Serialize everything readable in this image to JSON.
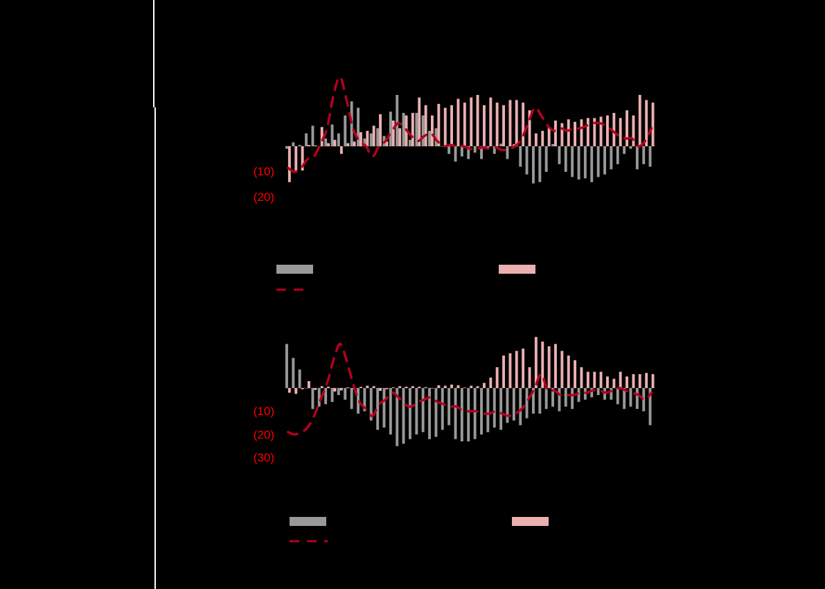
{
  "colors": {
    "background": "#000000",
    "grey_bar": "#999999",
    "pink_bar": "#ebb0b0",
    "line": "#b5001f",
    "axis_label": "#ff0000",
    "divider": "#ffffff"
  },
  "chart_data": [
    {
      "type": "bar",
      "title": "",
      "xlabel": "",
      "ylabel": "",
      "y_tick_labels": [
        "(10)",
        "(20)"
      ],
      "ylim": [
        -20,
        30
      ],
      "grid": false,
      "legend": [
        {
          "name": "",
          "style": "grey-bar"
        },
        {
          "name": "",
          "style": "pink-bar"
        },
        {
          "name": "",
          "style": "dashed-line"
        }
      ],
      "series": [
        {
          "name": "grey",
          "values": [
            -1,
            1.5,
            0.5,
            5,
            8,
            0,
            3,
            8.5,
            5,
            12,
            17.5,
            15,
            3,
            5,
            7,
            4,
            13.5,
            20,
            13,
            2.5,
            13,
            12,
            6,
            7,
            0,
            -3,
            -6,
            -4,
            -5,
            -2.5,
            -5,
            -1,
            -3,
            1,
            -5,
            0.8,
            -8,
            -11,
            -14.5,
            -14,
            -10,
            0.8,
            -7,
            -10,
            -12,
            -13,
            -12.5,
            -14,
            -12,
            -11,
            -9,
            -7,
            -3,
            -1,
            -9,
            -7,
            -8
          ]
        },
        {
          "name": "pink",
          "values": [
            -14,
            -9.5,
            -9.5,
            0.5,
            0.3,
            7.5,
            1.2,
            2.5,
            -3,
            1.2,
            1.8,
            5.5,
            6,
            8,
            12.5,
            1.8,
            10,
            7,
            12,
            13,
            19,
            16,
            12,
            16.5,
            15,
            16,
            18.5,
            17,
            19,
            20,
            16,
            19,
            17,
            16,
            18,
            18,
            17,
            14,
            5,
            6,
            7.5,
            10,
            9,
            10.5,
            9.5,
            10.5,
            11,
            11,
            11.5,
            12,
            13,
            11,
            14,
            12,
            20,
            18,
            17,
            19
          ]
        },
        {
          "name": "line",
          "values": [
            -8.5,
            -10,
            -8.5,
            -5,
            -4,
            1,
            7,
            20,
            27,
            18,
            7,
            2,
            0,
            -4,
            0,
            2,
            6,
            9,
            7,
            4,
            2,
            4,
            5,
            2,
            0,
            0.5,
            0,
            0,
            -1,
            -1,
            -0.5,
            -1,
            -0.5,
            -1.5,
            -1,
            0,
            3,
            9,
            15,
            12,
            8,
            6,
            7,
            6,
            7,
            7,
            8,
            9,
            9,
            8,
            6,
            4,
            3,
            3,
            0,
            2,
            7
          ]
        }
      ],
      "x": []
    },
    {
      "type": "bar",
      "title": "",
      "xlabel": "",
      "ylabel": "",
      "y_tick_labels": [
        "(10)",
        "(20)",
        "(30)"
      ],
      "ylim": [
        -30,
        20
      ],
      "grid": false,
      "legend": [
        {
          "name": "",
          "style": "grey-bar"
        },
        {
          "name": "",
          "style": "pink-bar"
        },
        {
          "name": "",
          "style": "dashed-line"
        }
      ],
      "series": [
        {
          "name": "grey",
          "values": [
            19,
            13,
            8,
            0,
            -9,
            -8,
            -7,
            -6,
            -3,
            -5,
            -9,
            -11,
            -10,
            -14,
            -18,
            -17,
            -20,
            -25,
            -24,
            -22,
            -20,
            -19,
            -22,
            -21,
            -18,
            -16,
            -22,
            -23,
            -23,
            -22,
            -20,
            -19,
            -17,
            -18,
            -15,
            -14,
            -16,
            -13,
            -11,
            -11,
            -9,
            -8,
            -10,
            -8,
            -9,
            -6,
            -5,
            -4,
            -3,
            -5,
            -5,
            -7,
            -9,
            -8,
            -9,
            -10,
            -16
          ]
        },
        {
          "name": "pink",
          "values": [
            -2,
            -2.5,
            -0.5,
            3,
            -0.8,
            0.8,
            0.6,
            -1.5,
            -1,
            0.3,
            -0.5,
            0.5,
            1,
            0.8,
            -1.2,
            -0.5,
            0.3,
            0.8,
            0.6,
            0.8,
            0.6,
            0.4,
            -0.2,
            1.2,
            1,
            1.5,
            1.2,
            0.2,
            1,
            0.8,
            2.2,
            4.5,
            9,
            14,
            15,
            16,
            17,
            9,
            22,
            20,
            18,
            19,
            16,
            14,
            12,
            9,
            7,
            7,
            7,
            5,
            4,
            7,
            5,
            6,
            6,
            6.5,
            6
          ]
        },
        {
          "name": "line",
          "values": [
            -19,
            -20,
            -19,
            -17,
            -12,
            -5,
            2,
            12,
            19,
            12,
            2,
            -6,
            -9,
            -12,
            -7,
            -5,
            -2,
            -4,
            -7,
            -8,
            -6,
            -5,
            -4,
            -6,
            -7,
            -8,
            -8,
            -10,
            -10,
            -10,
            -11,
            -11,
            -10,
            -11,
            -12,
            -11,
            -9,
            -5,
            0,
            6,
            -1,
            -1,
            -3,
            -3,
            -3,
            -2,
            -2,
            -1,
            -1,
            -2,
            -1,
            0,
            -1,
            -2,
            -3,
            -5,
            -2
          ]
        }
      ],
      "x": []
    }
  ],
  "legends": [
    {
      "grey_label": "",
      "pink_label": "",
      "line_label": ""
    },
    {
      "grey_label": "",
      "pink_label": "",
      "line_label": ""
    }
  ]
}
